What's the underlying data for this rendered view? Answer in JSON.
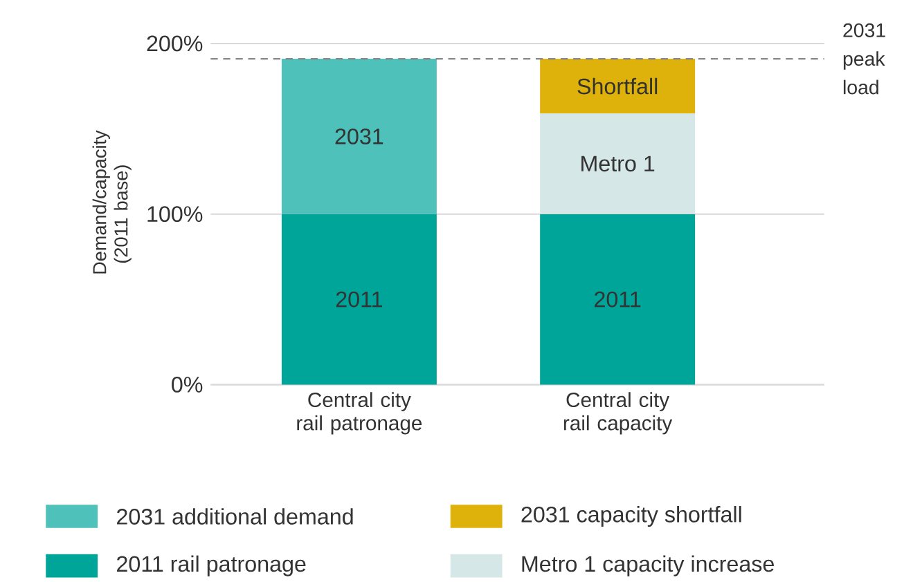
{
  "chart_data": {
    "type": "bar",
    "stacked": true,
    "ylabel": "Demand/capacity (2011 base)",
    "categories": [
      "Central city rail patronage",
      "Central city rail capacity"
    ],
    "series": [
      {
        "name": "2011 rail patronage",
        "color": "#00a59a",
        "values": [
          100,
          100
        ]
      },
      {
        "name": "2031 additional demand",
        "color": "#4fc1bb",
        "values": [
          91,
          null
        ]
      },
      {
        "name": "Metro 1 capacity increase",
        "color": "#d5e7e6",
        "values": [
          null,
          59
        ]
      },
      {
        "name": "2031 capacity shortfall",
        "color": "#dfb10b",
        "values": [
          null,
          32
        ]
      }
    ],
    "annotations": [
      "2011",
      "2011",
      "2031",
      "Metro 1",
      "Shortfall"
    ],
    "ylim": [
      0,
      200
    ],
    "yticks": [
      {
        "value": 0,
        "label": "0%"
      },
      {
        "value": 100,
        "label": "100%"
      },
      {
        "value": 200,
        "label": "200%"
      }
    ],
    "grid": "y",
    "legend": "bottom",
    "ref_lines": [
      {
        "axis": "y",
        "value": 191,
        "label": "2031 peak load",
        "color": "#888888",
        "line_style": "dashed"
      }
    ]
  }
}
